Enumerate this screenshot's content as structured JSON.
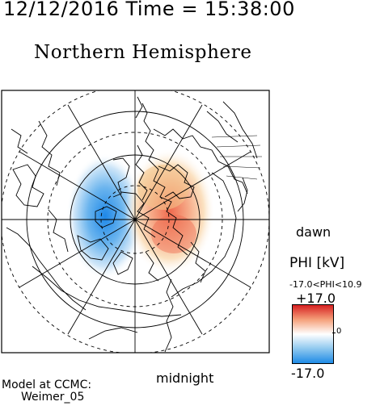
{
  "header": {
    "timestamp": "12/12/2016 Time = 15:38:00",
    "title": "Northern Hemisphere"
  },
  "plot": {
    "labels": {
      "dawn": "dawn",
      "midnight": "midnight"
    },
    "colors": {
      "positive": "#e0453a",
      "negative": "#2f8ce0",
      "neutral": "#ffffff"
    },
    "potential_cells": [
      {
        "sign": "negative",
        "local_time_sector": "dusk-midnight"
      },
      {
        "sign": "positive",
        "local_time_sector": "noon-dawn"
      }
    ]
  },
  "colorbar": {
    "title": "PHI [kV]",
    "range_note": "-17.0<PHI<10.9",
    "max_label": "+17.0",
    "min_label": "-17.0",
    "zero_label": "0",
    "max": 17.0,
    "min": -17.0,
    "data_min": -17.0,
    "data_max": 10.9,
    "colors": [
      "#d62020",
      "#f5a07a",
      "#ffffff",
      "#8fc8ef",
      "#1f8be6"
    ]
  },
  "footer": {
    "model_line1": "Model at CCMC:",
    "model_line2": "Weimer_05"
  }
}
